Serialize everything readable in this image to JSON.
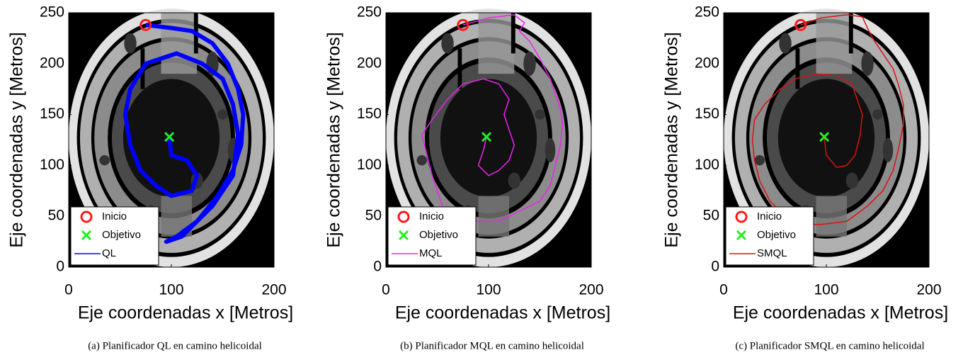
{
  "chart_data": [
    {
      "type": "line",
      "caption": "(a) Planificador QL en camino helicoidal",
      "xlabel": "Eje coordenadas x [Metros]",
      "ylabel": "Eje coordenadas y [Metros]",
      "xlim": [
        0,
        200
      ],
      "ylim": [
        0,
        250
      ],
      "xticks": [
        0,
        100,
        200
      ],
      "yticks": [
        0,
        50,
        100,
        150,
        200,
        250
      ],
      "legend": "lower left",
      "series": [
        {
          "name": "Inicio",
          "color": "#ff1a1a",
          "marker": "o",
          "x": [
            75
          ],
          "values": [
            238
          ]
        },
        {
          "name": "Objetivo",
          "color": "#22ee22",
          "marker": "x",
          "x": [
            98
          ],
          "values": [
            128
          ]
        },
        {
          "name": "QL",
          "color": "#0000ff",
          "marker": "line",
          "x": [
            75,
            100,
            120,
            140,
            155,
            165,
            170,
            168,
            160,
            145,
            125,
            105,
            95,
            110,
            140,
            160,
            165,
            160,
            150,
            130,
            105,
            75,
            60,
            55,
            60,
            70,
            85,
            100,
            120,
            125,
            115,
            100,
            98
          ],
          "values": [
            238,
            235,
            232,
            220,
            200,
            175,
            150,
            120,
            95,
            70,
            45,
            30,
            25,
            30,
            60,
            90,
            130,
            160,
            185,
            200,
            210,
            200,
            175,
            150,
            120,
            95,
            80,
            70,
            75,
            90,
            105,
            110,
            128
          ]
        }
      ]
    },
    {
      "type": "line",
      "caption": "(b) Planificador MQL en camino helicoidal",
      "xlabel": "Eje coordenadas x [Metros]",
      "ylabel": "Eje coordenadas y [Metros]",
      "xlim": [
        0,
        200
      ],
      "ylim": [
        0,
        250
      ],
      "xticks": [
        0,
        100,
        200
      ],
      "yticks": [
        0,
        50,
        100,
        150,
        200,
        250
      ],
      "legend": "lower left",
      "series": [
        {
          "name": "Inicio",
          "color": "#ff1a1a",
          "marker": "o",
          "x": [
            75
          ],
          "values": [
            238
          ]
        },
        {
          "name": "Objetivo",
          "color": "#22ee22",
          "marker": "x",
          "x": [
            98
          ],
          "values": [
            128
          ]
        },
        {
          "name": "MQL",
          "color": "#ee22ee",
          "marker": "line",
          "x": [
            75,
            100,
            125,
            135,
            130,
            140,
            150,
            160,
            165,
            170,
            172,
            170,
            165,
            160,
            150,
            130,
            110,
            90,
            70,
            55,
            50,
            45,
            40,
            35,
            45,
            60,
            75,
            95,
            110,
            120,
            115,
            120,
            125,
            120,
            110,
            100,
            90,
            95,
            98
          ],
          "values": [
            238,
            245,
            248,
            240,
            232,
            222,
            205,
            185,
            170,
            155,
            140,
            120,
            100,
            80,
            65,
            55,
            45,
            45,
            50,
            60,
            75,
            90,
            110,
            130,
            145,
            165,
            180,
            185,
            180,
            165,
            150,
            135,
            120,
            105,
            95,
            90,
            100,
            115,
            128
          ]
        }
      ]
    },
    {
      "type": "line",
      "caption": "(c) Planificador SMQL en camino helicoidal",
      "xlabel": "Eje coordenadas x [Metros]",
      "ylabel": "Eje coordenadas y [Metros]",
      "xlim": [
        0,
        200
      ],
      "ylim": [
        0,
        250
      ],
      "xticks": [
        0,
        100,
        200
      ],
      "yticks": [
        0,
        50,
        100,
        150,
        200,
        250
      ],
      "legend": "lower left",
      "series": [
        {
          "name": "Inicio",
          "color": "#ff1a1a",
          "marker": "o",
          "x": [
            75
          ],
          "values": [
            238
          ]
        },
        {
          "name": "Objetivo",
          "color": "#22ee22",
          "marker": "x",
          "x": [
            98
          ],
          "values": [
            128
          ]
        },
        {
          "name": "SMQL",
          "color": "#dd1111",
          "marker": "line",
          "x": [
            75,
            95,
            120,
            135,
            140,
            145,
            155,
            165,
            170,
            175,
            175,
            170,
            165,
            155,
            140,
            120,
            95,
            75,
            60,
            45,
            35,
            30,
            28,
            30,
            40,
            55,
            70,
            90,
            110,
            125,
            130,
            135,
            133,
            128,
            120,
            110,
            100,
            98
          ],
          "values": [
            238,
            245,
            248,
            246,
            235,
            225,
            210,
            195,
            180,
            160,
            140,
            115,
            95,
            75,
            60,
            45,
            42,
            42,
            50,
            65,
            85,
            105,
            125,
            145,
            160,
            175,
            185,
            190,
            188,
            180,
            165,
            150,
            130,
            110,
            100,
            98,
            110,
            128
          ]
        }
      ]
    }
  ]
}
